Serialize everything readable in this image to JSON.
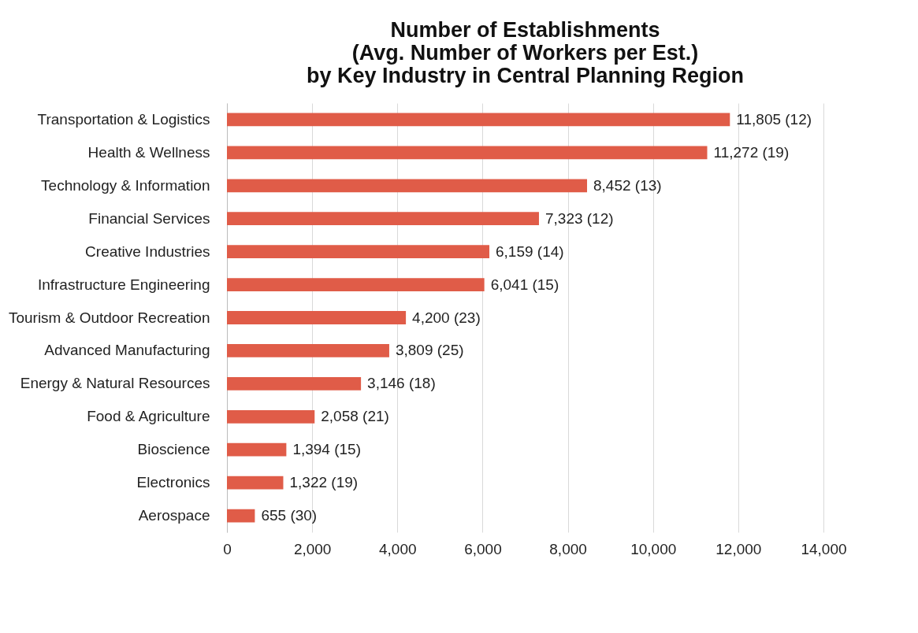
{
  "chart_data": {
    "type": "bar",
    "orientation": "horizontal",
    "title": [
      "Number of Establishments",
      "(Avg. Number of Workers per Est.)",
      "by Key Industry in Central Planning Region"
    ],
    "categories": [
      "Transportation & Logistics",
      "Health & Wellness",
      "Technology & Information",
      "Financial Services",
      "Creative Industries",
      "Infrastructure Engineering",
      "Tourism & Outdoor Recreation",
      "Advanced Manufacturing",
      "Energy & Natural Resources",
      "Food & Agriculture",
      "Bioscience",
      "Electronics",
      "Aerospace"
    ],
    "values": [
      11805,
      11272,
      8452,
      7323,
      6159,
      6041,
      4200,
      3809,
      3146,
      2058,
      1394,
      1322,
      655
    ],
    "value_labels": [
      "11,805 (12)",
      "11,272 (19)",
      "8,452 (13)",
      "7,323 (12)",
      "6,159 (14)",
      "6,041 (15)",
      "4,200 (23)",
      "3,809 (25)",
      "3,146 (18)",
      "2,058 (21)",
      "1,394 (15)",
      "1,322 (19)",
      "655 (30)"
    ],
    "color": "#e05c48",
    "xlim": [
      0,
      14000
    ],
    "xticks": [
      0,
      {
        "value": 2000,
        "label": "2,000"
      },
      {
        "value": 4000,
        "label": "4,000"
      },
      {
        "value": 6000,
        "label": "6,000"
      },
      {
        "value": 8000,
        "label": "8,000"
      },
      {
        "value": 10000,
        "label": "10,000"
      },
      {
        "value": 12000,
        "label": "12,000"
      },
      {
        "value": 14000,
        "label": "14,000"
      }
    ],
    "grid": "x"
  }
}
